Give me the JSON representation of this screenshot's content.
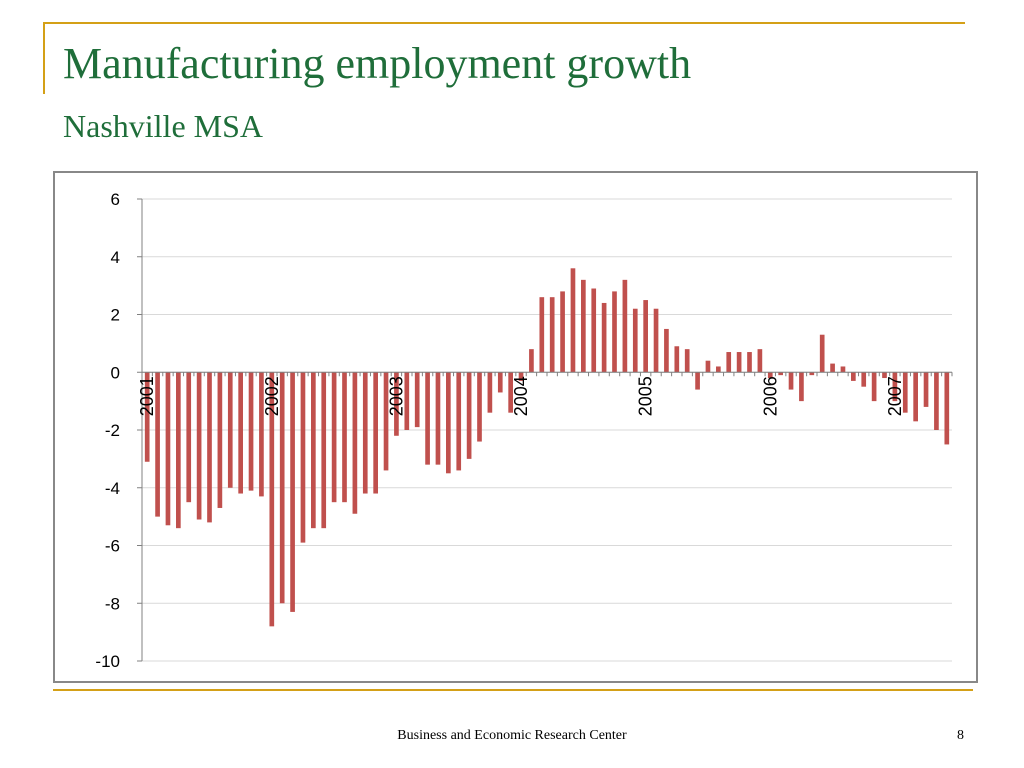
{
  "slide": {
    "title": "Manufacturing employment growth",
    "subtitle": "Nashville MSA",
    "footer": "Business and Economic Research Center",
    "page_number": "8"
  },
  "colors": {
    "title": "#1f6e3a",
    "accent_rule": "#d4a017",
    "bar": "#c0504d",
    "grid": "#d9d9d9",
    "axis_text": "#000000"
  },
  "chart_data": {
    "type": "bar",
    "title": "",
    "xlabel": "",
    "ylabel": "",
    "ylim": [
      -10,
      6
    ],
    "yticks": [
      6,
      4,
      2,
      0,
      -2,
      -4,
      -6,
      -8,
      -10
    ],
    "grid": true,
    "legend": "none",
    "x_tick_labels": [
      {
        "label": "2001",
        "index": 0
      },
      {
        "label": "2002",
        "index": 12
      },
      {
        "label": "2003",
        "index": 24
      },
      {
        "label": "2004",
        "index": 36
      },
      {
        "label": "2005",
        "index": 48
      },
      {
        "label": "2006",
        "index": 60
      },
      {
        "label": "2007",
        "index": 72
      }
    ],
    "series": [
      {
        "values": [
          -3.1,
          -5.0,
          -5.3,
          -5.4,
          -4.5,
          -5.1,
          -5.2,
          -4.7,
          -4.0,
          -4.2,
          -4.1,
          -4.3,
          -8.8,
          -8.0,
          -8.3,
          -5.9,
          -5.4,
          -5.4,
          -4.5,
          -4.5,
          -4.9,
          -4.2,
          -4.2,
          -3.4,
          -2.2,
          -2.0,
          -1.9,
          -3.2,
          -3.2,
          -3.5,
          -3.4,
          -3.0,
          -2.4,
          -1.4,
          -0.7,
          -1.4,
          -0.3,
          0.8,
          2.6,
          2.6,
          2.8,
          3.6,
          3.2,
          2.9,
          2.4,
          2.8,
          3.2,
          2.2,
          2.5,
          2.2,
          1.5,
          0.9,
          0.8,
          -0.6,
          0.4,
          0.2,
          0.7,
          0.7,
          0.7,
          0.8,
          -0.2,
          -0.1,
          -0.6,
          -1.0,
          -0.1,
          1.3,
          0.3,
          0.2,
          -0.3,
          -0.5,
          -1.0,
          -0.2,
          -1.0,
          -1.4,
          -1.7,
          -1.2,
          -2.0,
          -2.5
        ]
      }
    ]
  }
}
